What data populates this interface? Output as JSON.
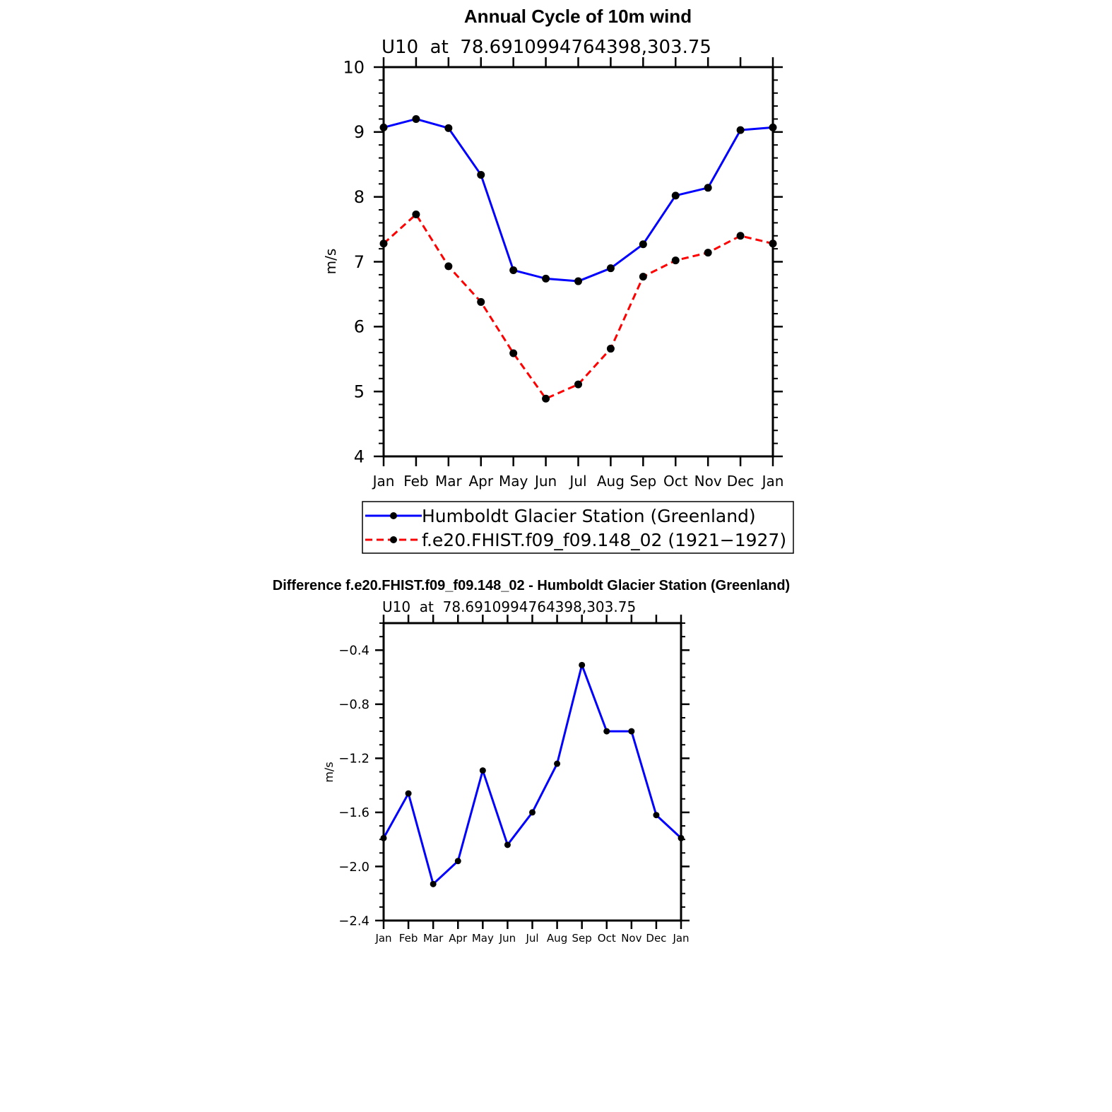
{
  "chart_data": [
    {
      "type": "line",
      "title": "Annual Cycle of 10m wind",
      "subtitle": "U10  at  78.6910994764398,303.75",
      "ylabel": "m/s",
      "xlabel": "",
      "categories": [
        "Jan",
        "Feb",
        "Mar",
        "Apr",
        "May",
        "Jun",
        "Jul",
        "Aug",
        "Sep",
        "Oct",
        "Nov",
        "Dec",
        "Jan"
      ],
      "ylim": [
        4,
        10
      ],
      "yticks": [
        "4",
        "5",
        "6",
        "7",
        "8",
        "9",
        "10"
      ],
      "grid": false,
      "legend_position": "bottom",
      "series": [
        {
          "name": "Humboldt Glacier Station (Greenland)",
          "color": "#0000ff",
          "dash": "solid",
          "values": [
            9.07,
            9.2,
            9.06,
            8.34,
            6.87,
            6.74,
            6.7,
            6.9,
            7.27,
            8.02,
            8.14,
            9.03,
            9.07
          ]
        },
        {
          "name": "f.e20.FHIST.f09_f09.148_02 (1921−1927)",
          "color": "#ff0000",
          "dash": "dashed",
          "values": [
            7.28,
            7.73,
            6.93,
            6.38,
            5.59,
            4.89,
            5.11,
            5.66,
            6.77,
            7.02,
            7.14,
            7.4,
            7.28
          ]
        }
      ]
    },
    {
      "type": "line",
      "title": "Difference f.e20.FHIST.f09_f09.148_02 - Humboldt Glacier Station (Greenland)",
      "subtitle": "U10  at  78.6910994764398,303.75",
      "ylabel": "m/s",
      "xlabel": "",
      "categories": [
        "Jan",
        "Feb",
        "Mar",
        "Apr",
        "May",
        "Jun",
        "Jul",
        "Aug",
        "Sep",
        "Oct",
        "Nov",
        "Dec",
        "Jan"
      ],
      "ylim": [
        -2.4,
        -0.2
      ],
      "yticks": [
        "−0.4",
        "−0.8",
        "−1.2",
        "−1.6",
        "−2.0",
        "−2.4"
      ],
      "grid": false,
      "series": [
        {
          "color": "#0000ff",
          "dash": "solid",
          "values": [
            -1.79,
            -1.46,
            -2.13,
            -1.96,
            -1.29,
            -1.84,
            -1.6,
            -1.24,
            -0.51,
            -1.0,
            -1.0,
            -1.62,
            -1.79
          ]
        }
      ]
    }
  ]
}
